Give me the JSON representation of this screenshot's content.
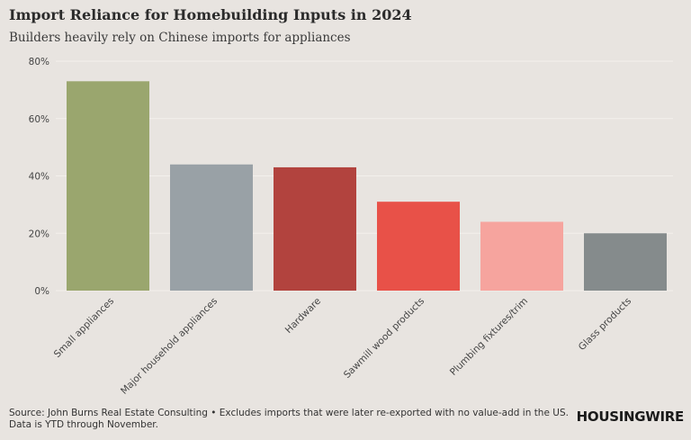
{
  "chart_data": {
    "type": "bar",
    "title": "Import Reliance for Homebuilding Inputs in 2024",
    "subtitle": "Builders heavily rely on Chinese imports for appliances",
    "categories": [
      "Small appliances",
      "Major household appliances",
      "Hardware",
      "Sawmill wood products",
      "Plumbing fixtures/trim",
      "Glass products"
    ],
    "values": [
      73,
      44,
      43,
      31,
      24,
      20
    ],
    "colors": [
      "#9aa66e",
      "#99a1a6",
      "#b2433e",
      "#e85148",
      "#f6a49e",
      "#858b8c"
    ],
    "ylim": [
      0,
      80
    ],
    "yticks": [
      0,
      20,
      40,
      60,
      80
    ],
    "ytick_labels": [
      "0%",
      "20%",
      "40%",
      "60%",
      "80%"
    ],
    "xlabel": "",
    "ylabel": "",
    "grid": true,
    "legend": "none"
  },
  "source": "Source: John Burns Real Estate Consulting • Excludes imports that were later re-exported with no value-add in the US. Data is YTD through November.",
  "brand": "HOUSINGWIRE"
}
